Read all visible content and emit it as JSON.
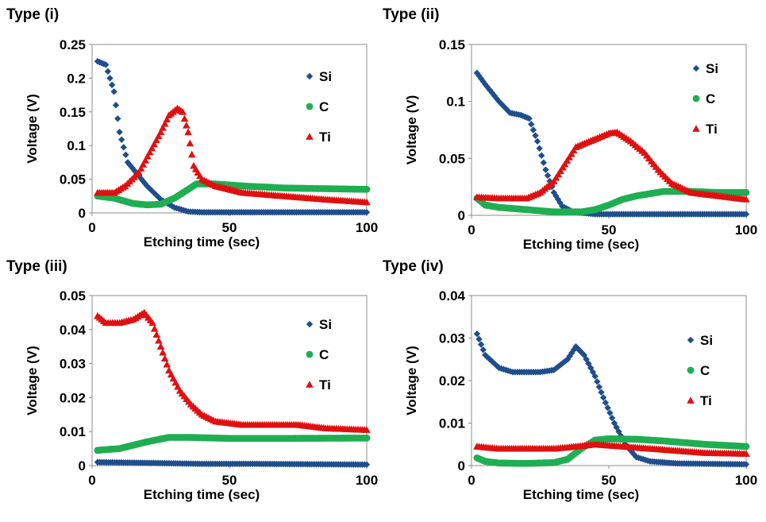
{
  "chart_data": [
    {
      "type": "scatter",
      "title": "Type (i)",
      "xlabel": "Etching time (sec)",
      "ylabel": "Voltage (V)",
      "xlim": [
        0,
        100
      ],
      "ylim": [
        0,
        0.25
      ],
      "xticks": [
        0,
        50,
        100
      ],
      "yticks": [
        0,
        0.05,
        0.1,
        0.15,
        0.2,
        0.25
      ],
      "xtick_labels": [
        "0",
        "50",
        "100"
      ],
      "ytick_labels": [
        "0",
        "0.05",
        "0.1",
        "0.15",
        "0.2",
        "0.25"
      ],
      "legend_position": "right",
      "series": [
        {
          "name": "Si",
          "marker": "diamond",
          "color": "#1f4e8c",
          "points": [
            [
              2,
              0.225
            ],
            [
              5,
              0.22
            ],
            [
              8,
              0.18
            ],
            [
              10,
              0.12
            ],
            [
              13,
              0.075
            ],
            [
              17,
              0.055
            ],
            [
              20,
              0.04
            ],
            [
              25,
              0.02
            ],
            [
              30,
              0.008
            ],
            [
              35,
              0.002
            ],
            [
              40,
              0.001
            ],
            [
              60,
              0.001
            ],
            [
              100,
              0.001
            ]
          ]
        },
        {
          "name": "C",
          "marker": "circle",
          "color": "#1fae52",
          "points": [
            [
              2,
              0.025
            ],
            [
              8,
              0.022
            ],
            [
              15,
              0.014
            ],
            [
              20,
              0.012
            ],
            [
              25,
              0.013
            ],
            [
              30,
              0.022
            ],
            [
              35,
              0.035
            ],
            [
              38,
              0.043
            ],
            [
              45,
              0.043
            ],
            [
              55,
              0.04
            ],
            [
              70,
              0.037
            ],
            [
              85,
              0.036
            ],
            [
              100,
              0.035
            ]
          ]
        },
        {
          "name": "Ti",
          "marker": "triangle",
          "color": "#e01010",
          "points": [
            [
              2,
              0.03
            ],
            [
              8,
              0.03
            ],
            [
              12,
              0.04
            ],
            [
              17,
              0.06
            ],
            [
              21,
              0.09
            ],
            [
              25,
              0.12
            ],
            [
              28,
              0.145
            ],
            [
              31,
              0.155
            ],
            [
              33,
              0.15
            ],
            [
              35,
              0.12
            ],
            [
              37,
              0.07
            ],
            [
              40,
              0.05
            ],
            [
              45,
              0.04
            ],
            [
              55,
              0.03
            ],
            [
              70,
              0.025
            ],
            [
              85,
              0.02
            ],
            [
              100,
              0.016
            ]
          ]
        }
      ]
    },
    {
      "type": "scatter",
      "title": "Type (ii)",
      "xlabel": "Etching time (sec)",
      "ylabel": "Voltage (V)",
      "xlim": [
        0,
        100
      ],
      "ylim": [
        0,
        0.15
      ],
      "xticks": [
        0,
        50,
        100
      ],
      "yticks": [
        0,
        0.05,
        0.1,
        0.15
      ],
      "xtick_labels": [
        "0",
        "50",
        "100"
      ],
      "ytick_labels": [
        "0",
        "0.05",
        "0.1",
        "0.15"
      ],
      "legend_position": "right",
      "series": [
        {
          "name": "Si",
          "marker": "diamond",
          "color": "#1f4e8c",
          "points": [
            [
              2,
              0.125
            ],
            [
              5,
              0.115
            ],
            [
              10,
              0.1
            ],
            [
              14,
              0.09
            ],
            [
              18,
              0.088
            ],
            [
              21,
              0.085
            ],
            [
              24,
              0.065
            ],
            [
              27,
              0.04
            ],
            [
              30,
              0.02
            ],
            [
              33,
              0.008
            ],
            [
              37,
              0.003
            ],
            [
              45,
              0.001
            ],
            [
              100,
              0.001
            ]
          ]
        },
        {
          "name": "C",
          "marker": "circle",
          "color": "#1fae52",
          "points": [
            [
              2,
              0.015
            ],
            [
              5,
              0.009
            ],
            [
              10,
              0.007
            ],
            [
              20,
              0.005
            ],
            [
              30,
              0.003
            ],
            [
              40,
              0.003
            ],
            [
              45,
              0.005
            ],
            [
              50,
              0.009
            ],
            [
              55,
              0.014
            ],
            [
              60,
              0.017
            ],
            [
              70,
              0.021
            ],
            [
              80,
              0.021
            ],
            [
              90,
              0.02
            ],
            [
              100,
              0.02
            ]
          ]
        },
        {
          "name": "Ti",
          "marker": "triangle",
          "color": "#e01010",
          "points": [
            [
              2,
              0.016
            ],
            [
              10,
              0.015
            ],
            [
              20,
              0.015
            ],
            [
              25,
              0.02
            ],
            [
              30,
              0.03
            ],
            [
              34,
              0.045
            ],
            [
              38,
              0.06
            ],
            [
              45,
              0.067
            ],
            [
              50,
              0.072
            ],
            [
              53,
              0.073
            ],
            [
              58,
              0.065
            ],
            [
              63,
              0.055
            ],
            [
              68,
              0.04
            ],
            [
              73,
              0.028
            ],
            [
              80,
              0.02
            ],
            [
              90,
              0.017
            ],
            [
              100,
              0.014
            ]
          ]
        }
      ]
    },
    {
      "type": "scatter",
      "title": "Type (iii)",
      "xlabel": "Etching time (sec)",
      "ylabel": "Voltage (V)",
      "xlim": [
        0,
        100
      ],
      "ylim": [
        0,
        0.05
      ],
      "xticks": [
        0,
        50,
        100
      ],
      "yticks": [
        0,
        0.01,
        0.02,
        0.03,
        0.04,
        0.05
      ],
      "xtick_labels": [
        "0",
        "50",
        "100"
      ],
      "ytick_labels": [
        "0",
        "0.01",
        "0.02",
        "0.03",
        "0.04",
        "0.05"
      ],
      "legend_position": "right",
      "series": [
        {
          "name": "Si",
          "marker": "diamond",
          "color": "#1f4e8c",
          "points": [
            [
              2,
              0.001
            ],
            [
              20,
              0.0008
            ],
            [
              40,
              0.0005
            ],
            [
              60,
              0.0005
            ],
            [
              80,
              0.0004
            ],
            [
              100,
              0.0003
            ]
          ]
        },
        {
          "name": "C",
          "marker": "circle",
          "color": "#1fae52",
          "points": [
            [
              2,
              0.0045
            ],
            [
              10,
              0.005
            ],
            [
              20,
              0.007
            ],
            [
              28,
              0.0083
            ],
            [
              35,
              0.0083
            ],
            [
              50,
              0.008
            ],
            [
              70,
              0.008
            ],
            [
              100,
              0.0081
            ]
          ]
        },
        {
          "name": "Ti",
          "marker": "triangle",
          "color": "#e01010",
          "points": [
            [
              2,
              0.044
            ],
            [
              5,
              0.042
            ],
            [
              10,
              0.042
            ],
            [
              15,
              0.043
            ],
            [
              19,
              0.045
            ],
            [
              22,
              0.042
            ],
            [
              25,
              0.035
            ],
            [
              28,
              0.028
            ],
            [
              32,
              0.022
            ],
            [
              36,
              0.018
            ],
            [
              40,
              0.015
            ],
            [
              45,
              0.013
            ],
            [
              55,
              0.012
            ],
            [
              65,
              0.012
            ],
            [
              75,
              0.012
            ],
            [
              85,
              0.011
            ],
            [
              100,
              0.0105
            ]
          ]
        }
      ]
    },
    {
      "type": "scatter",
      "title": "Type (iv)",
      "xlabel": "Etching time (sec)",
      "ylabel": "Voltage (V)",
      "xlim": [
        0,
        100
      ],
      "ylim": [
        0,
        0.04
      ],
      "xticks": [
        0,
        50,
        100
      ],
      "yticks": [
        0,
        0.01,
        0.02,
        0.03,
        0.04
      ],
      "xtick_labels": [
        "0",
        "50",
        "100"
      ],
      "ytick_labels": [
        "0",
        "0.01",
        "0.02",
        "0.03",
        "0.04"
      ],
      "legend_position": "right",
      "series": [
        {
          "name": "Si",
          "marker": "diamond",
          "color": "#1f4e8c",
          "points": [
            [
              2,
              0.031
            ],
            [
              5,
              0.026
            ],
            [
              10,
              0.023
            ],
            [
              15,
              0.022
            ],
            [
              20,
              0.022
            ],
            [
              25,
              0.022
            ],
            [
              30,
              0.0225
            ],
            [
              35,
              0.025
            ],
            [
              38,
              0.028
            ],
            [
              41,
              0.026
            ],
            [
              45,
              0.021
            ],
            [
              48,
              0.016
            ],
            [
              52,
              0.01
            ],
            [
              56,
              0.005
            ],
            [
              60,
              0.002
            ],
            [
              65,
              0.001
            ],
            [
              75,
              0.0005
            ],
            [
              100,
              0.0003
            ]
          ]
        },
        {
          "name": "C",
          "marker": "circle",
          "color": "#1fae52",
          "points": [
            [
              2,
              0.0018
            ],
            [
              5,
              0.001
            ],
            [
              10,
              0.0006
            ],
            [
              20,
              0.0005
            ],
            [
              30,
              0.0007
            ],
            [
              35,
              0.0015
            ],
            [
              40,
              0.004
            ],
            [
              45,
              0.006
            ],
            [
              50,
              0.0063
            ],
            [
              60,
              0.0062
            ],
            [
              70,
              0.0058
            ],
            [
              85,
              0.005
            ],
            [
              100,
              0.0045
            ]
          ]
        },
        {
          "name": "Ti",
          "marker": "triangle",
          "color": "#e01010",
          "points": [
            [
              2,
              0.0045
            ],
            [
              10,
              0.004
            ],
            [
              20,
              0.004
            ],
            [
              30,
              0.004
            ],
            [
              38,
              0.0045
            ],
            [
              45,
              0.005
            ],
            [
              55,
              0.0045
            ],
            [
              65,
              0.004
            ],
            [
              75,
              0.0035
            ],
            [
              85,
              0.003
            ],
            [
              100,
              0.0028
            ]
          ]
        }
      ]
    }
  ]
}
